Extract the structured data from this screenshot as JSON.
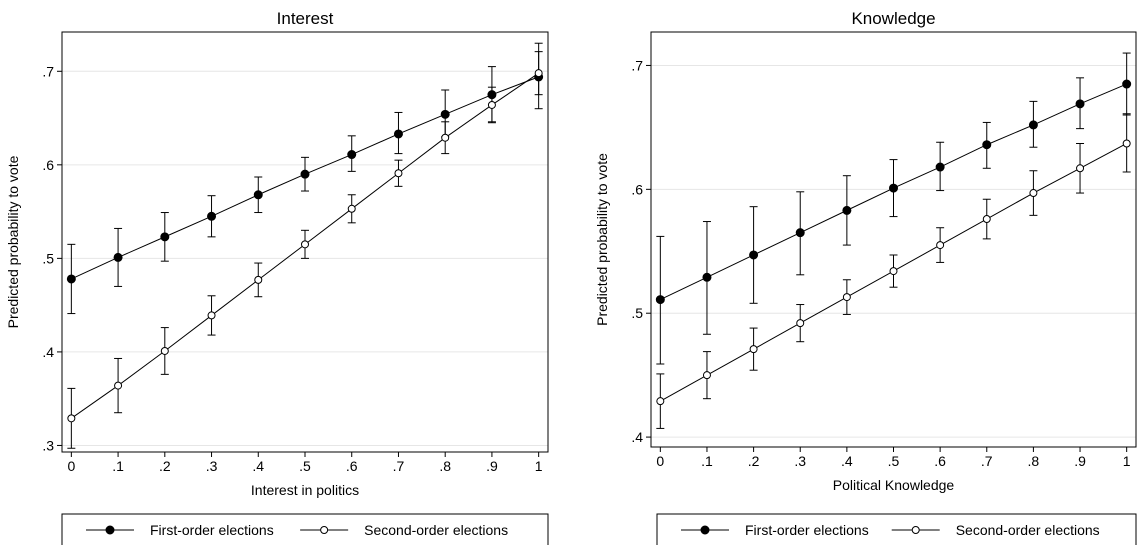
{
  "chart_data": [
    {
      "type": "line",
      "title": "Interest",
      "xlabel": "Interest in politics",
      "ylabel": "Predicted probability to vote",
      "x": [
        0,
        0.1,
        0.2,
        0.3,
        0.4,
        0.5,
        0.6,
        0.7,
        0.8,
        0.9,
        1
      ],
      "x_tick_labels": [
        "0",
        ".1",
        ".2",
        ".3",
        ".4",
        ".5",
        ".6",
        ".7",
        ".8",
        ".9",
        "1"
      ],
      "xlim": [
        -0.02,
        1.02
      ],
      "ylim": [
        0.293,
        0.742
      ],
      "y_ticks": [
        0.3,
        0.4,
        0.5,
        0.6,
        0.7
      ],
      "y_tick_labels": [
        ".3",
        ".4",
        ".5",
        ".6",
        ".7"
      ],
      "grid": true,
      "legend": "bottom",
      "series": [
        {
          "name": "First-order elections",
          "marker": "filled",
          "values": [
            0.478,
            0.501,
            0.523,
            0.545,
            0.568,
            0.59,
            0.611,
            0.633,
            0.654,
            0.675,
            0.694
          ],
          "ci_low": [
            0.441,
            0.47,
            0.497,
            0.523,
            0.549,
            0.572,
            0.593,
            0.612,
            0.63,
            0.646,
            0.66
          ],
          "ci_high": [
            0.515,
            0.532,
            0.549,
            0.567,
            0.587,
            0.608,
            0.631,
            0.656,
            0.68,
            0.705,
            0.73
          ]
        },
        {
          "name": "Second-order elections",
          "marker": "hollow",
          "values": [
            0.329,
            0.364,
            0.401,
            0.439,
            0.477,
            0.515,
            0.553,
            0.591,
            0.629,
            0.664,
            0.698
          ],
          "ci_low": [
            0.297,
            0.335,
            0.376,
            0.418,
            0.459,
            0.5,
            0.538,
            0.577,
            0.612,
            0.645,
            0.675
          ],
          "ci_high": [
            0.361,
            0.393,
            0.426,
            0.46,
            0.495,
            0.53,
            0.568,
            0.605,
            0.646,
            0.683,
            0.721
          ]
        }
      ]
    },
    {
      "type": "line",
      "title": "Knowledge",
      "xlabel": "Political Knowledge",
      "ylabel": "Predicted probability to vote",
      "x": [
        0,
        0.1,
        0.2,
        0.3,
        0.4,
        0.5,
        0.6,
        0.7,
        0.8,
        0.9,
        1
      ],
      "x_tick_labels": [
        "0",
        ".1",
        ".2",
        ".3",
        ".4",
        ".5",
        ".6",
        ".7",
        ".8",
        ".9",
        "1"
      ],
      "xlim": [
        -0.02,
        1.02
      ],
      "ylim": [
        0.392,
        0.727
      ],
      "y_ticks": [
        0.4,
        0.5,
        0.6,
        0.7
      ],
      "y_tick_labels": [
        ".4",
        ".5",
        ".6",
        ".7"
      ],
      "grid": true,
      "legend": "bottom",
      "series": [
        {
          "name": "First-order elections",
          "marker": "filled",
          "values": [
            0.511,
            0.529,
            0.547,
            0.565,
            0.583,
            0.601,
            0.618,
            0.636,
            0.652,
            0.669,
            0.685
          ],
          "ci_low": [
            0.459,
            0.483,
            0.508,
            0.531,
            0.555,
            0.578,
            0.599,
            0.617,
            0.634,
            0.649,
            0.66
          ],
          "ci_high": [
            0.562,
            0.574,
            0.586,
            0.598,
            0.611,
            0.624,
            0.638,
            0.654,
            0.671,
            0.69,
            0.71
          ]
        },
        {
          "name": "Second-order elections",
          "marker": "hollow",
          "values": [
            0.429,
            0.45,
            0.471,
            0.492,
            0.513,
            0.534,
            0.555,
            0.576,
            0.597,
            0.617,
            0.637
          ],
          "ci_low": [
            0.407,
            0.431,
            0.454,
            0.477,
            0.499,
            0.521,
            0.541,
            0.56,
            0.579,
            0.597,
            0.614
          ],
          "ci_high": [
            0.451,
            0.469,
            0.488,
            0.507,
            0.527,
            0.547,
            0.569,
            0.592,
            0.615,
            0.637,
            0.661
          ]
        }
      ]
    }
  ]
}
